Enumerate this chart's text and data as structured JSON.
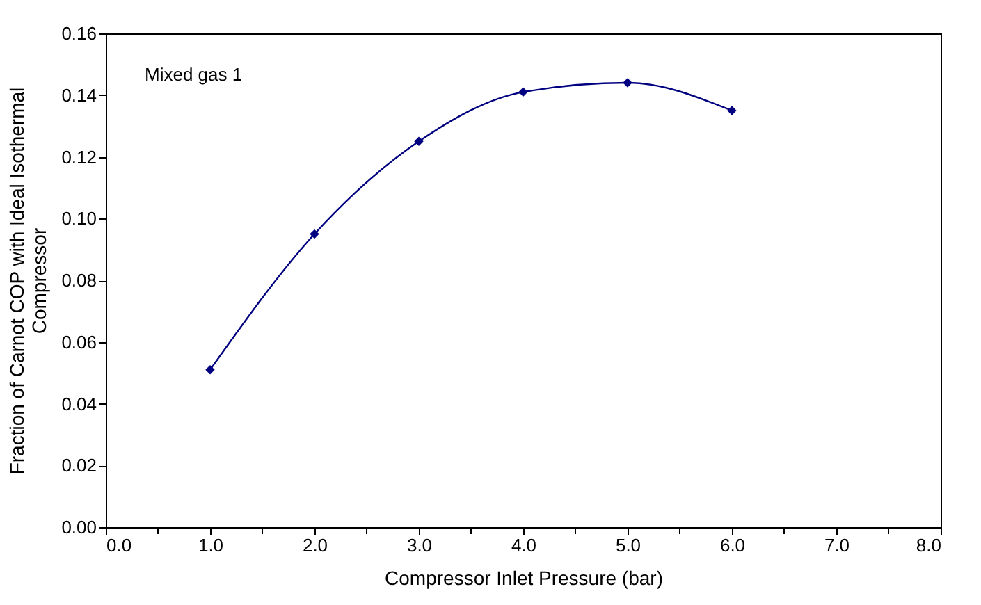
{
  "chart_data": {
    "type": "line",
    "xlabel": "Compressor Inlet Pressure (bar)",
    "ylabel": "Fraction of Carnot COP with Ideal Isothermal Compressor",
    "annotations": [
      "Mixed gas 1"
    ],
    "x": [
      1,
      2,
      3,
      4,
      5,
      6
    ],
    "series": [
      {
        "color": "#000080",
        "values": [
          0.051,
          0.095,
          0.125,
          0.141,
          0.144,
          0.135
        ]
      }
    ],
    "xlim": [
      0,
      8
    ],
    "xticks": [
      {
        "value": 0,
        "label": "0.0"
      },
      {
        "value": 0.5,
        "label": null
      },
      {
        "value": 1,
        "label": "1.0"
      },
      {
        "value": 1.5,
        "label": null
      },
      {
        "value": 2,
        "label": "2.0"
      },
      {
        "value": 2.5,
        "label": null
      },
      {
        "value": 3,
        "label": "3.0"
      },
      {
        "value": 3.5,
        "label": null
      },
      {
        "value": 4,
        "label": "4.0"
      },
      {
        "value": 4.5,
        "label": null
      },
      {
        "value": 5,
        "label": "5.0"
      },
      {
        "value": 5.5,
        "label": null
      },
      {
        "value": 6,
        "label": "6.0"
      },
      {
        "value": 6.5,
        "label": null
      },
      {
        "value": 7,
        "label": "7.0"
      },
      {
        "value": 7.5,
        "label": null
      },
      {
        "value": 8,
        "label": "8.0"
      }
    ],
    "ylim": [
      0,
      0.16
    ],
    "yticks": [
      {
        "value": 0,
        "label": "0.00"
      },
      {
        "value": 0.02,
        "label": "0.02"
      },
      {
        "value": 0.04,
        "label": "0.04"
      },
      {
        "value": 0.06,
        "label": "0.06"
      },
      {
        "value": 0.08,
        "label": "0.08"
      },
      {
        "value": 0.1,
        "label": "0.10"
      },
      {
        "value": 0.12,
        "label": "0.12"
      },
      {
        "value": 0.14,
        "label": "0.14"
      },
      {
        "value": 0.16,
        "label": "0.16"
      }
    ],
    "grid": false,
    "legend": false,
    "marker": "diamond",
    "line_style": "solid"
  }
}
